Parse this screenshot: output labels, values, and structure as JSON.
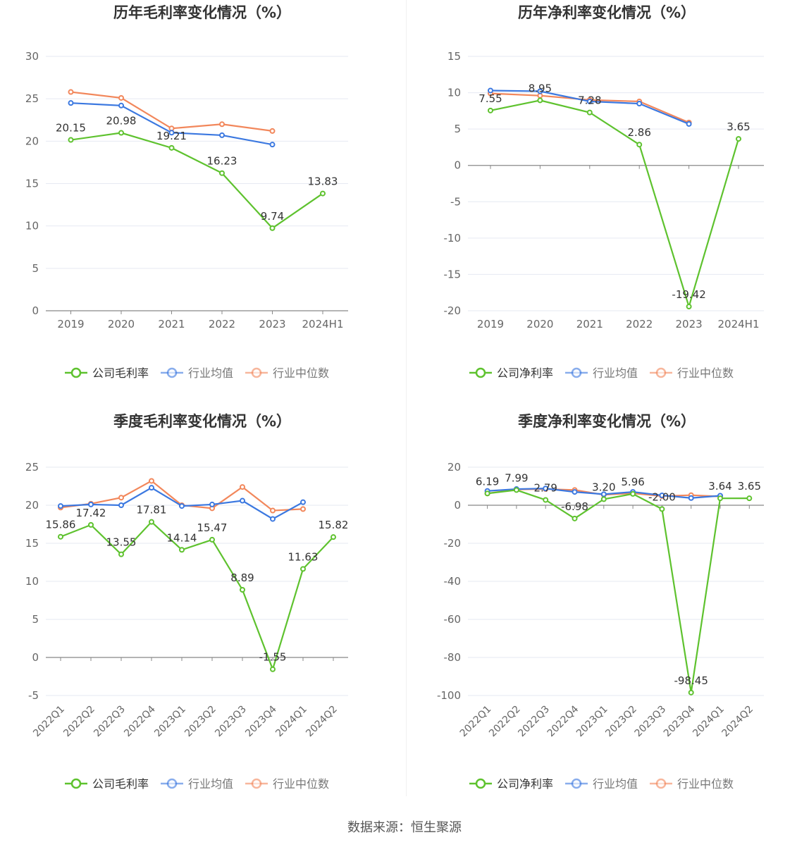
{
  "footer": {
    "source": "数据来源：恒生聚源"
  },
  "colors": {
    "company": "#5ec22e",
    "industry_avg": "#3b78e0",
    "industry_median": "#f2875b"
  },
  "chart_data": [
    {
      "id": "annual-gross",
      "type": "line",
      "title": "历年毛利率变化情况（%）",
      "categories": [
        "2019",
        "2020",
        "2021",
        "2022",
        "2023",
        "2024H1"
      ],
      "ylim": [
        0,
        30
      ],
      "yticks": [
        0,
        5,
        10,
        15,
        20,
        25,
        30
      ],
      "xlabel_rotated": false,
      "series": [
        {
          "name": "公司毛利率",
          "role": "company",
          "values": [
            20.15,
            20.98,
            19.21,
            16.23,
            9.74,
            13.83
          ],
          "labels": [
            "20.15",
            "20.98",
            "19.21",
            "16.23",
            "9.74",
            "13.83"
          ]
        },
        {
          "name": "行业均值",
          "role": "industry_avg",
          "values": [
            24.5,
            24.2,
            21.0,
            20.7,
            19.6,
            null
          ]
        },
        {
          "name": "行业中位数",
          "role": "industry_median",
          "values": [
            25.8,
            25.1,
            21.5,
            22.0,
            21.2,
            null
          ]
        }
      ],
      "legend": [
        "公司毛利率",
        "行业均值",
        "行业中位数"
      ]
    },
    {
      "id": "annual-net",
      "type": "line",
      "title": "历年净利率变化情况（%）",
      "categories": [
        "2019",
        "2020",
        "2021",
        "2022",
        "2023",
        "2024H1"
      ],
      "ylim": [
        -20,
        15
      ],
      "yticks": [
        -20,
        -15,
        -10,
        -5,
        0,
        5,
        10,
        15
      ],
      "xlabel_rotated": false,
      "series": [
        {
          "name": "公司净利率",
          "role": "company",
          "values": [
            7.55,
            8.95,
            7.28,
            2.86,
            -19.42,
            3.65
          ],
          "labels": [
            "7.55",
            "8.95",
            "7.28",
            "2.86",
            "-19.42",
            "3.65"
          ]
        },
        {
          "name": "行业均值",
          "role": "industry_avg",
          "values": [
            10.3,
            10.2,
            8.8,
            8.5,
            5.7,
            null
          ]
        },
        {
          "name": "行业中位数",
          "role": "industry_median",
          "values": [
            9.9,
            9.6,
            9.0,
            8.8,
            5.9,
            null
          ]
        }
      ],
      "legend": [
        "公司净利率",
        "行业均值",
        "行业中位数"
      ]
    },
    {
      "id": "quarterly-gross",
      "type": "line",
      "title": "季度毛利率变化情况（%）",
      "categories": [
        "2022Q1",
        "2022Q2",
        "2022Q3",
        "2022Q4",
        "2023Q1",
        "2023Q2",
        "2023Q3",
        "2023Q4",
        "2024Q1",
        "2024Q2"
      ],
      "ylim": [
        -5,
        25
      ],
      "yticks": [
        -5,
        0,
        5,
        10,
        15,
        20,
        25
      ],
      "xlabel_rotated": true,
      "series": [
        {
          "name": "公司毛利率",
          "role": "company",
          "values": [
            15.86,
            17.42,
            13.55,
            17.81,
            14.14,
            15.47,
            8.89,
            -1.55,
            11.63,
            15.82
          ],
          "labels": [
            "15.86",
            "17.42",
            "13.55",
            "17.81",
            "14.14",
            "15.47",
            "8.89",
            "-1.55",
            "11.63",
            "15.82"
          ]
        },
        {
          "name": "行业均值",
          "role": "industry_avg",
          "values": [
            19.9,
            20.1,
            20.0,
            22.3,
            19.9,
            20.1,
            20.6,
            18.2,
            20.4,
            null
          ]
        },
        {
          "name": "行业中位数",
          "role": "industry_median",
          "values": [
            19.7,
            20.2,
            21.0,
            23.2,
            20.0,
            19.6,
            22.4,
            19.3,
            19.5,
            null
          ]
        }
      ],
      "legend": [
        "公司毛利率",
        "行业均值",
        "行业中位数"
      ]
    },
    {
      "id": "quarterly-net",
      "type": "line",
      "title": "季度净利率变化情况（%）",
      "categories": [
        "2022Q1",
        "2022Q2",
        "2022Q3",
        "2022Q4",
        "2023Q1",
        "2023Q2",
        "2023Q3",
        "2023Q4",
        "2024Q1",
        "2024Q2"
      ],
      "ylim": [
        -100,
        20
      ],
      "yticks": [
        -100,
        -80,
        -60,
        -40,
        -20,
        0,
        20
      ],
      "xlabel_rotated": true,
      "series": [
        {
          "name": "公司净利率",
          "role": "company",
          "values": [
            6.19,
            7.99,
            2.79,
            -6.98,
            3.2,
            5.96,
            -2.0,
            -98.45,
            3.64,
            3.65
          ],
          "labels": [
            "6.19",
            "7.99",
            "2.79",
            "-6.98",
            "3.20",
            "5.96",
            "-2.00",
            "-98.45",
            "3.64",
            "3.65"
          ]
        },
        {
          "name": "行业均值",
          "role": "industry_avg",
          "values": [
            7.5,
            8.5,
            8.8,
            7.0,
            5.8,
            7.0,
            5.2,
            3.8,
            5.0,
            null
          ]
        },
        {
          "name": "行业中位数",
          "role": "industry_median",
          "values": [
            6.2,
            8.3,
            8.5,
            8.0,
            5.5,
            6.3,
            4.8,
            5.3,
            4.6,
            null
          ]
        }
      ],
      "legend": [
        "公司净利率",
        "行业均值",
        "行业中位数"
      ]
    }
  ]
}
